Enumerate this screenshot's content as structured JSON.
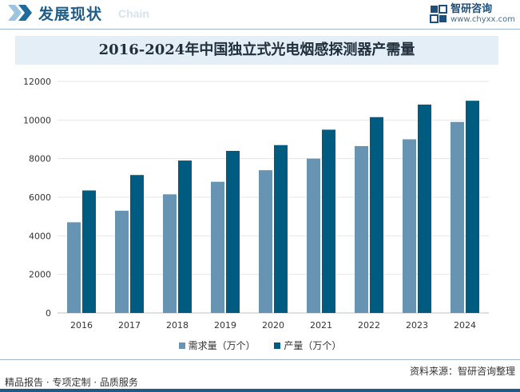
{
  "header": {
    "title": "发展现状",
    "subtitle": "Chain",
    "brand_name": "智研咨询",
    "brand_url": "www.chyxx.com"
  },
  "chart_data": {
    "type": "bar",
    "title": "2016-2024年中国独立式光电烟感探测器产需量",
    "categories": [
      "2016",
      "2017",
      "2018",
      "2019",
      "2020",
      "2021",
      "2022",
      "2023",
      "2024"
    ],
    "series": [
      {
        "name": "需求量（万个）",
        "color": "#6694b2",
        "values": [
          4700,
          5300,
          6150,
          6800,
          7400,
          8000,
          8650,
          9000,
          9900
        ]
      },
      {
        "name": "产量（万个）",
        "color": "#005b80",
        "values": [
          6350,
          7150,
          7900,
          8400,
          8700,
          9500,
          10150,
          10800,
          11000
        ]
      }
    ],
    "ylim": [
      0,
      12000
    ],
    "yticks": [
      0,
      2000,
      4000,
      6000,
      8000,
      10000,
      12000
    ],
    "grid": true,
    "legend": "bottom-center"
  },
  "footer": {
    "left_text": "精品报告 · 专项定制 · 品质服务",
    "source_text": "资料来源：智研咨询整理"
  }
}
